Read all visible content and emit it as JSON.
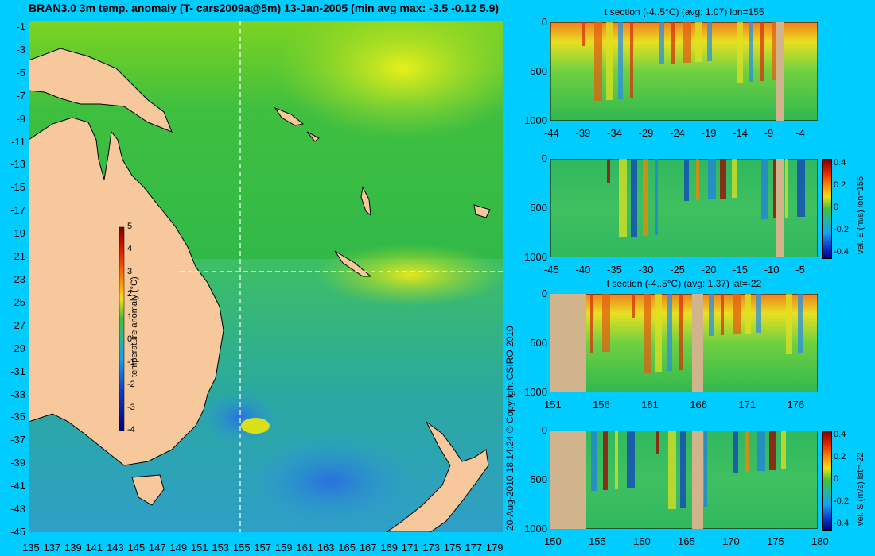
{
  "title": "BRAN3.0 3m temp. anomaly (T- cars2009a@5m) 13-Jan-2005 (min avg max: -3.5 -0.12 5.9)",
  "copyright": "20-Aug-2010 18:14:24    © Copyright CSIRO 2010",
  "colors": {
    "background": "#00ccff",
    "land": "#f7c89b",
    "section_land": "#d2b48c",
    "grid_line": "#ffffff",
    "coast": "#000000"
  },
  "map": {
    "lon_ticks": [
      "135",
      "137",
      "139",
      "141",
      "143",
      "145",
      "147",
      "149",
      "151",
      "153",
      "155",
      "157",
      "159",
      "161",
      "163",
      "165",
      "167",
      "169",
      "171",
      "173",
      "175",
      "177",
      "179"
    ],
    "lat_ticks": [
      "-1",
      "-3",
      "-5",
      "-7",
      "-9",
      "-11",
      "-13",
      "-15",
      "-17",
      "-19",
      "-21",
      "-23",
      "-25",
      "-27",
      "-29",
      "-31",
      "-33",
      "-35",
      "-37",
      "-39",
      "-41",
      "-43",
      "-45"
    ],
    "section_lon": 155,
    "section_lat": -22,
    "colorbar": {
      "label": "temperature anomaly (°C)",
      "ticks": [
        "5",
        "4",
        "3",
        "2",
        "1",
        "0",
        "-1",
        "-2",
        "-3",
        "-4"
      ],
      "range": [
        -4,
        5
      ]
    }
  },
  "panels": [
    {
      "title": "t section (-4..5°C) (avg: 1.07) lon=155",
      "x_ticks": [
        "-44",
        "-39",
        "-34",
        "-29",
        "-24",
        "-19",
        "-14",
        "-9",
        "-4"
      ],
      "y_ticks": [
        "0",
        "500",
        "1000"
      ],
      "side_label": "",
      "cbar_ticks": []
    },
    {
      "title": "",
      "x_ticks": [
        "-45",
        "-40",
        "-35",
        "-30",
        "-25",
        "-20",
        "-15",
        "-10",
        "-5"
      ],
      "y_ticks": [
        "0",
        "500",
        "1000"
      ],
      "side_label": "vel. E (m/s) lon=155",
      "cbar_ticks": [
        "0.4",
        "0.2",
        "0",
        "-0.2",
        "-0.4"
      ]
    },
    {
      "title": "t section (-4..5°C) (avg: 1.37) lat=-22",
      "x_ticks": [
        "151",
        "156",
        "161",
        "166",
        "171",
        "176"
      ],
      "y_ticks": [
        "0",
        "500",
        "1000"
      ],
      "side_label": "",
      "cbar_ticks": []
    },
    {
      "title": "",
      "x_ticks": [
        "150",
        "155",
        "160",
        "165",
        "170",
        "175",
        "180"
      ],
      "y_ticks": [
        "0",
        "500",
        "1000"
      ],
      "side_label": "vel. S (m/s) lat=-22",
      "cbar_ticks": [
        "0.4",
        "0.2",
        "0",
        "-0.2",
        "-0.4"
      ]
    }
  ]
}
